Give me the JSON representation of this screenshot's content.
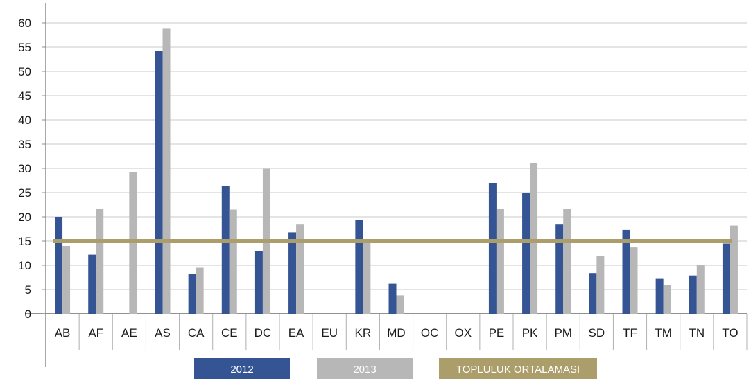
{
  "chart_data": {
    "type": "bar",
    "categories": [
      "AB",
      "AF",
      "AE",
      "AS",
      "CA",
      "CE",
      "DC",
      "EA",
      "EU",
      "KR",
      "MD",
      "OC",
      "OX",
      "PE",
      "PK",
      "PM",
      "SD",
      "TF",
      "TM",
      "TN",
      "TO"
    ],
    "series": [
      {
        "name": "2012",
        "color": "#355494",
        "values": [
          20,
          12.2,
          null,
          54.2,
          8.2,
          26.3,
          13,
          16.8,
          null,
          19.3,
          6.2,
          null,
          null,
          27,
          25,
          18.4,
          8.4,
          17.3,
          7.2,
          7.9,
          14.5
        ]
      },
      {
        "name": "2013",
        "color": "#b7b7b7",
        "values": [
          14,
          21.7,
          29.2,
          58.8,
          9.5,
          21.5,
          29.9,
          18.4,
          null,
          14.7,
          3.8,
          null,
          null,
          21.7,
          31,
          21.7,
          11.9,
          13.7,
          6,
          10,
          18.2
        ]
      }
    ],
    "reference_line": {
      "name": "TOPLULUK ORTALAMASI",
      "color": "#ab9e6b",
      "value": 15
    },
    "ylim": [
      0,
      60
    ],
    "yticks": [
      0,
      5,
      10,
      15,
      20,
      25,
      30,
      35,
      40,
      45,
      50,
      55,
      60
    ],
    "grid": true,
    "legend_position": "bottom",
    "title": "",
    "xlabel": "",
    "ylabel": ""
  }
}
